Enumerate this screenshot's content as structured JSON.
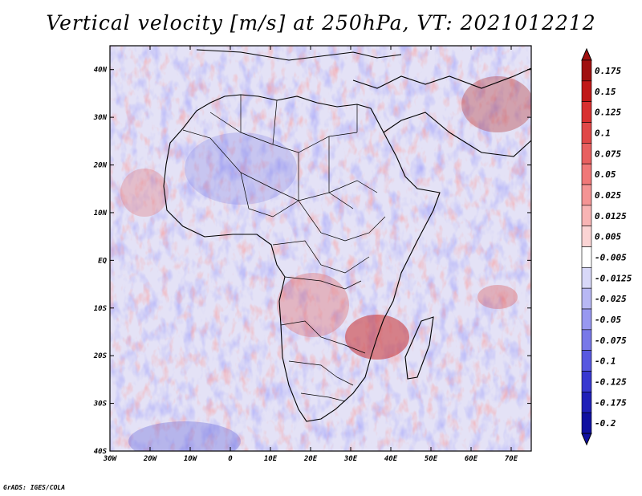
{
  "title": "Vertical velocity [m/s] at 250hPa, VT: 2021012212",
  "credit": "GrADS: IGES/COLA",
  "map": {
    "lat_ticks": [
      "40N",
      "30N",
      "20N",
      "10N",
      "EQ",
      "10S",
      "20S",
      "30S",
      "40S"
    ],
    "lon_ticks": [
      "30W",
      "20W",
      "10W",
      "0",
      "10E",
      "20E",
      "30E",
      "40E",
      "50E",
      "60E",
      "70E"
    ],
    "lat_range": [
      -40,
      45
    ],
    "lon_range": [
      -30,
      75
    ],
    "field_description": "Vertical velocity at 250hPa over Africa"
  },
  "colorbar": {
    "levels": [
      "0.175",
      "0.15",
      "0.125",
      "0.1",
      "0.075",
      "0.05",
      "0.025",
      "0.0125",
      "0.005",
      "-0.005",
      "-0.0125",
      "-0.025",
      "-0.05",
      "-0.075",
      "-0.1",
      "-0.125",
      "-0.175",
      "-0.2"
    ],
    "colors": [
      "#a01010",
      "#c01818",
      "#d83030",
      "#e04848",
      "#e86060",
      "#f07878",
      "#f49494",
      "#f8b4b4",
      "#fbd4d4",
      "#ffffff",
      "#d8d8f8",
      "#b8b8f4",
      "#9898f0",
      "#7878e8",
      "#5858e0",
      "#3838d0",
      "#2020b8",
      "#1010a0"
    ]
  }
}
